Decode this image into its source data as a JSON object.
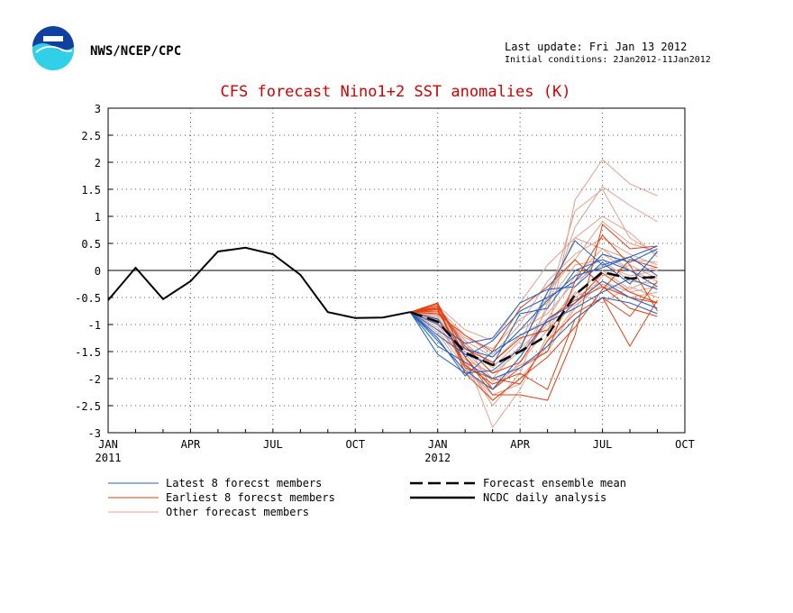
{
  "header": {
    "agency": "NWS/NCEP/CPC",
    "last_update": "Last update: Fri Jan 13 2012",
    "initial_conditions": "Initial conditions: 2Jan2012-11Jan2012"
  },
  "colors": {
    "title": "#d40000",
    "latest": "#2060c0",
    "earliest": "#e04010",
    "other": "#e0a090",
    "analysis": "#000000",
    "logo_blue": "#1040a0",
    "logo_cyan": "#30d0e8"
  },
  "chart_data": {
    "type": "line",
    "title": "CFS forecast Nino1+2 SST anomalies (K)",
    "ylim": [
      -3,
      3
    ],
    "yticks": [
      -3,
      -2.5,
      -2,
      -1.5,
      -1,
      -0.5,
      0,
      0.5,
      1,
      1.5,
      2,
      2.5,
      3
    ],
    "ytick_labels": [
      "-3",
      "-2.5",
      "-2",
      "-1.5",
      "-1",
      "-0.5",
      "0",
      "0.5",
      "1",
      "1.5",
      "2",
      "2.5",
      "3"
    ],
    "xlim": [
      0,
      21
    ],
    "xticks": [
      {
        "x": 0,
        "label": "JAN",
        "sublabel": "2011"
      },
      {
        "x": 3,
        "label": "APR",
        "sublabel": ""
      },
      {
        "x": 6,
        "label": "JUL",
        "sublabel": ""
      },
      {
        "x": 9,
        "label": "OCT",
        "sublabel": ""
      },
      {
        "x": 12,
        "label": "JAN",
        "sublabel": "2012"
      },
      {
        "x": 15,
        "label": "APR",
        "sublabel": ""
      },
      {
        "x": 18,
        "label": "JUL",
        "sublabel": ""
      },
      {
        "x": 21,
        "label": "OCT",
        "sublabel": ""
      }
    ],
    "grid": true,
    "zero_line": true,
    "legend": [
      {
        "label": "Latest 8 forecst members",
        "style": "latest"
      },
      {
        "label": "Earliest 8 forecst members",
        "style": "earliest"
      },
      {
        "label": "Other forecast members",
        "style": "other"
      },
      {
        "label": "Forecast ensemble mean",
        "style": "mean"
      },
      {
        "label": "NCDC daily analysis",
        "style": "analysis"
      }
    ],
    "analysis": {
      "x": [
        0,
        1,
        2,
        3,
        4,
        5,
        6,
        7,
        8,
        9,
        10,
        11
      ],
      "y": [
        -0.55,
        0.05,
        -0.53,
        -0.2,
        0.35,
        0.42,
        0.3,
        -0.08,
        -0.77,
        -0.88,
        -0.87,
        -0.77
      ]
    },
    "ensemble_mean": {
      "x": [
        11,
        12,
        13,
        14,
        15,
        16,
        17,
        18,
        19,
        20
      ],
      "y": [
        -0.77,
        -0.95,
        -1.52,
        -1.75,
        -1.5,
        -1.2,
        -0.45,
        -0.03,
        -0.15,
        -0.12
      ]
    },
    "member_x": [
      11,
      12,
      13,
      14,
      15,
      16,
      17,
      18,
      19,
      20
    ],
    "latest_members": [
      [
        -0.77,
        -1.55,
        -1.9,
        -1.85,
        -1.45,
        -0.4,
        0.55,
        0.1,
        0.25,
        0.45
      ],
      [
        -0.77,
        -1.2,
        -1.55,
        -1.75,
        -0.8,
        -0.7,
        0.0,
        0.2,
        0.0,
        -0.3
      ],
      [
        -0.77,
        -1.3,
        -1.85,
        -2.2,
        -1.6,
        -0.9,
        -0.6,
        -0.2,
        -0.5,
        -0.7
      ],
      [
        -0.77,
        -1.0,
        -1.35,
        -1.25,
        -0.6,
        -0.35,
        -0.3,
        0.15,
        -0.25,
        0.35
      ],
      [
        -0.77,
        -1.4,
        -1.7,
        -2.0,
        -1.8,
        -1.4,
        -0.9,
        -0.5,
        -0.6,
        -0.8
      ],
      [
        -0.77,
        -1.1,
        -1.45,
        -1.6,
        -1.1,
        -0.55,
        -0.1,
        0.05,
        0.25,
        -0.1
      ],
      [
        -0.77,
        -1.25,
        -1.95,
        -1.5,
        -1.2,
        -0.95,
        -0.7,
        -0.4,
        -0.15,
        -0.35
      ],
      [
        -0.77,
        -0.9,
        -1.6,
        -1.3,
        -0.75,
        -0.5,
        -0.2,
        0.3,
        0.15,
        0.4
      ]
    ],
    "earliest_members": [
      [
        -0.77,
        -0.6,
        -1.6,
        -2.3,
        -2.3,
        -2.4,
        -1.2,
        0.85,
        0.4,
        0.45
      ],
      [
        -0.77,
        -0.65,
        -1.4,
        -1.9,
        -1.7,
        -0.9,
        -0.55,
        -0.3,
        -0.5,
        -0.6
      ],
      [
        -0.77,
        -0.7,
        -1.8,
        -2.0,
        -2.1,
        -1.3,
        -0.8,
        -0.5,
        -1.4,
        -0.55
      ],
      [
        -0.77,
        -0.75,
        -1.6,
        -2.2,
        -1.8,
        -1.5,
        -0.2,
        0.65,
        0.1,
        -0.75
      ],
      [
        -0.77,
        -0.8,
        -1.2,
        -1.5,
        -0.7,
        -0.3,
        0.2,
        -0.3,
        -0.7,
        -0.85
      ],
      [
        -0.77,
        -0.62,
        -1.9,
        -2.4,
        -2.0,
        -1.6,
        -1.05,
        -0.35,
        0.2,
        0.05
      ],
      [
        -0.77,
        -0.68,
        -1.45,
        -1.7,
        -1.25,
        -1.1,
        -0.6,
        -0.05,
        -0.4,
        -0.6
      ],
      [
        -0.77,
        -0.72,
        -1.75,
        -2.1,
        -1.9,
        -2.2,
        -0.9,
        -0.5,
        -0.85,
        -0.2
      ]
    ],
    "other_members": [
      [
        -0.77,
        -0.85,
        -1.6,
        -2.9,
        -2.2,
        -1.2,
        1.3,
        2.05,
        1.6,
        1.38
      ],
      [
        -0.77,
        -0.75,
        -1.3,
        -2.2,
        -1.6,
        -0.7,
        0.8,
        1.55,
        1.2,
        0.9
      ],
      [
        -0.77,
        -1.05,
        -1.7,
        -2.5,
        -1.9,
        -0.6,
        1.1,
        1.5,
        0.6,
        0.3
      ],
      [
        -0.77,
        -0.95,
        -1.5,
        -2.0,
        -1.4,
        -0.5,
        0.6,
        1.0,
        0.7,
        0.25
      ],
      [
        -0.77,
        -0.7,
        -1.2,
        -1.55,
        -1.0,
        -0.2,
        0.3,
        0.6,
        0.3,
        0.1
      ],
      [
        -0.77,
        -0.9,
        -1.4,
        -1.7,
        -1.2,
        -0.9,
        -0.1,
        0.4,
        0.0,
        -0.2
      ],
      [
        -0.77,
        -1.1,
        -1.8,
        -2.3,
        -2.1,
        -1.3,
        -0.5,
        -0.2,
        -0.4,
        -0.3
      ],
      [
        -0.77,
        -0.8,
        -1.3,
        -1.6,
        -1.1,
        -0.8,
        -0.2,
        0.1,
        -0.1,
        0.0
      ],
      [
        -0.77,
        -1.0,
        -1.65,
        -1.9,
        -1.5,
        -1.0,
        -0.4,
        -0.6,
        -0.3,
        -0.5
      ],
      [
        -0.77,
        -0.65,
        -1.1,
        -1.3,
        -0.6,
        0.1,
        0.6,
        0.4,
        0.2,
        0.15
      ],
      [
        -0.77,
        -0.88,
        -1.55,
        -2.05,
        -1.75,
        -1.5,
        -0.7,
        -0.1,
        0.1,
        -0.15
      ],
      [
        -0.77,
        -0.92,
        -1.45,
        -1.8,
        -1.3,
        -0.4,
        0.2,
        0.9,
        0.5,
        0.35
      ],
      [
        -0.77,
        -0.78,
        -1.25,
        -1.45,
        -0.9,
        -0.6,
        0.1,
        0.2,
        -0.2,
        -0.25
      ],
      [
        -0.77,
        -1.15,
        -1.9,
        -2.2,
        -1.7,
        -1.1,
        -0.3,
        0.3,
        0.0,
        0.05
      ],
      [
        -0.77,
        -0.82,
        -1.35,
        -1.75,
        -1.45,
        -0.95,
        -0.45,
        0.0,
        -0.35,
        -0.1
      ],
      [
        -0.77,
        -0.98,
        -1.75,
        -2.4,
        -2.0,
        -1.4,
        -0.65,
        -0.25,
        -0.5,
        -0.4
      ]
    ]
  }
}
